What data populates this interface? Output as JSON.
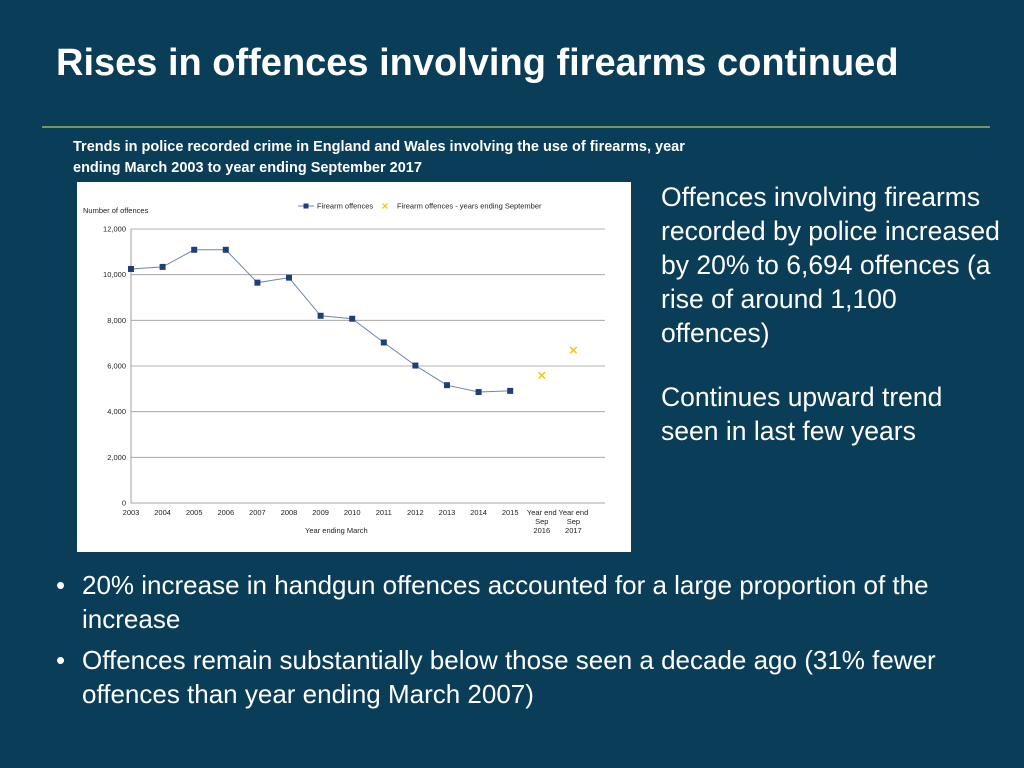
{
  "slide": {
    "title": "Rises in offences involving firearms continued",
    "chart_caption": "Trends in police recorded crime in England and Wales involving the use of firearms, year ending March 2003 to year ending September 2017",
    "right_points": [
      "Offences involving firearms recorded by police increased by 20% to 6,694 offences (a rise of around 1,100 offences)",
      "Continues upward trend seen in last few years"
    ],
    "bullets": [
      "20% increase in handgun offences accounted for a large proportion of the increase",
      "Offences remain substantially below those seen a decade ago (31% fewer offences than year ending March 2007)"
    ],
    "bullet_glyph": "•",
    "colors": {
      "background": "#0a3d57",
      "rule": "#6f9a5c",
      "series_main": "#1f3f7a",
      "series_sep": "#f2c200"
    }
  },
  "chart_data": {
    "type": "line",
    "ylabel": "Number of offences",
    "xlabel": "Year ending March",
    "ylim": [
      0,
      12000
    ],
    "yticks": [
      0,
      2000,
      4000,
      6000,
      8000,
      10000,
      12000
    ],
    "ytick_labels": [
      "0",
      "2,000",
      "4,000",
      "6,000",
      "8,000",
      "10,000",
      "12,000"
    ],
    "grid": true,
    "legend_position": "top-center",
    "categories": [
      [
        "2003"
      ],
      [
        "2004"
      ],
      [
        "2005"
      ],
      [
        "2006"
      ],
      [
        "2007"
      ],
      [
        "2008"
      ],
      [
        "2009"
      ],
      [
        "2010"
      ],
      [
        "2011"
      ],
      [
        "2012"
      ],
      [
        "2013"
      ],
      [
        "2014"
      ],
      [
        "2015"
      ],
      [
        "Year end",
        "Sep",
        "2016"
      ],
      [
        "Year end",
        "Sep",
        "2017"
      ]
    ],
    "series": [
      {
        "name": "Firearm offences",
        "marker": "square",
        "values": [
          10250,
          10340,
          11090,
          11090,
          9650,
          9870,
          8200,
          8070,
          7030,
          6020,
          5160,
          4860,
          4910,
          null,
          null
        ]
      },
      {
        "name": "Firearm offences  - years ending September",
        "marker": "x",
        "values": [
          null,
          null,
          null,
          null,
          null,
          null,
          null,
          null,
          null,
          null,
          null,
          null,
          null,
          5590,
          6694
        ]
      }
    ]
  }
}
